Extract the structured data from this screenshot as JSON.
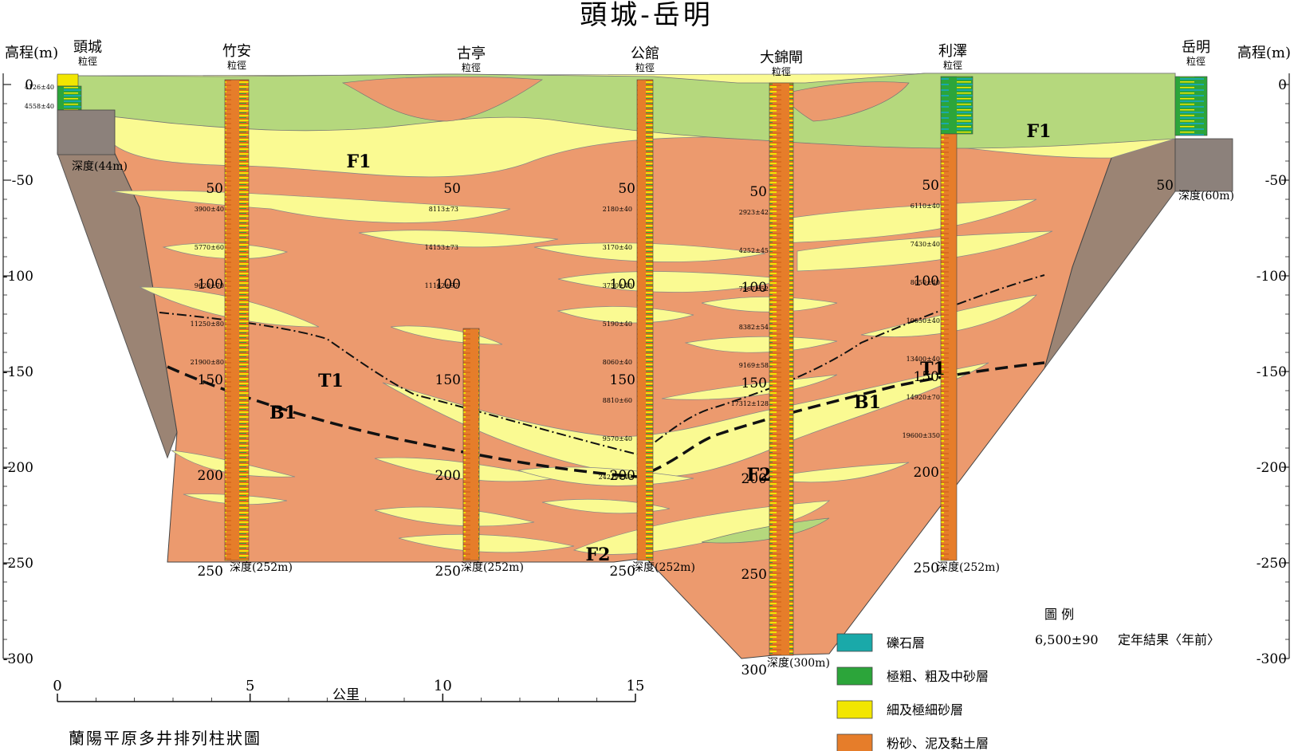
{
  "title": "頭城-岳明",
  "caption": "蘭陽平原多井排列柱狀圖",
  "axis": {
    "left_label": "高程(m)",
    "right_label": "高程(m)",
    "ticks": [
      "0",
      "-50",
      "-100",
      "-150",
      "-200",
      "-250",
      "-300"
    ],
    "scale_label": "公里",
    "scale_ticks": [
      "0",
      "5",
      "10",
      "15"
    ]
  },
  "grain_label": "粒徑",
  "wells": [
    {
      "name": "頭城",
      "depth_label": "深度(44m)",
      "depth_ticks": [],
      "dates": [
        "4126±40",
        "4558±40"
      ]
    },
    {
      "name": "竹安",
      "depth_label": "深度(252m)",
      "depth_ticks": [
        "50",
        "100",
        "150",
        "200",
        "250"
      ],
      "dates": [
        "3900±40",
        "5770±60",
        "9620±70",
        "11250±80",
        "21900±80"
      ]
    },
    {
      "name": "古亭",
      "depth_label": "深度(252m)",
      "depth_ticks": [
        "50",
        "100",
        "150",
        "200",
        "250"
      ],
      "dates": [
        "8113±73",
        "14153±73",
        "11162±97"
      ]
    },
    {
      "name": "公館",
      "depth_label": "深度(252m)",
      "depth_ticks": [
        "50",
        "100",
        "150",
        "200",
        "250"
      ],
      "dates": [
        "2180±40",
        "3170±40",
        "3750±40",
        "5190±40",
        "8060±40",
        "8810±60",
        "9570±40",
        "24219±49"
      ]
    },
    {
      "name": "大錦閘",
      "depth_label": "深度(300m)",
      "depth_ticks": [
        "50",
        "100",
        "150",
        "200",
        "250",
        "300"
      ],
      "dates": [
        "2923±42",
        "4252±45",
        "7567±52",
        "8382±54",
        "9169±58",
        "17312±128"
      ]
    },
    {
      "name": "利澤",
      "depth_label": "深度(252m)",
      "depth_ticks": [
        "50",
        "100",
        "150",
        "200",
        "250"
      ],
      "dates": [
        "6110±40",
        "7430±40",
        "8050±40",
        "10050±40",
        "13400±40",
        "14920±70",
        "19600±350"
      ]
    },
    {
      "name": "岳明",
      "depth_label": "深度(60m)",
      "depth_ticks": [
        "50"
      ],
      "dates": []
    }
  ],
  "zone_labels": [
    "F1",
    "F1",
    "F2",
    "F2",
    "T1",
    "T1",
    "B1",
    "B1"
  ],
  "legend": {
    "title": "圖 例",
    "items": [
      {
        "label": "礫石層",
        "color": "#1aa9a9"
      },
      {
        "label": "極粗、粗及中砂層",
        "color": "#2ca53a"
      },
      {
        "label": "細及極細砂層",
        "color": "#f2e600"
      },
      {
        "label": "粉砂、泥及黏土層",
        "color": "#e67d2a"
      }
    ],
    "date_example": "6,500±90",
    "date_label": "定年結果〈年前〉"
  },
  "colors": {
    "clay": "#ec9a6e",
    "sand_fine": "#fafa92",
    "sand_green": "#b5d87d",
    "basement": "#9b8474",
    "grey_block": "#8c817b"
  }
}
